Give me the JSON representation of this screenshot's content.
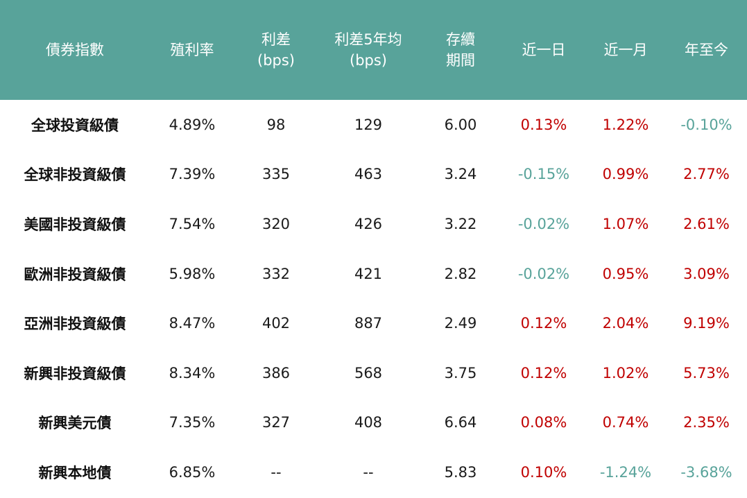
{
  "colors": {
    "header_bg": "#58a39a",
    "header_text": "#ffffff",
    "positive": "#c00000",
    "negative": "#58a39a"
  },
  "chart_data": {
    "type": "table",
    "columns": [
      {
        "key": "index",
        "lines": [
          "債券指數"
        ]
      },
      {
        "key": "yield",
        "lines": [
          "殖利率"
        ]
      },
      {
        "key": "spread",
        "lines": [
          "利差",
          "(bps)"
        ]
      },
      {
        "key": "spread5y",
        "lines": [
          "利差5年均",
          "(bps)"
        ]
      },
      {
        "key": "duration",
        "lines": [
          "存續",
          "期間"
        ]
      },
      {
        "key": "d1",
        "lines": [
          "近一日"
        ]
      },
      {
        "key": "m1",
        "lines": [
          "近一月"
        ]
      },
      {
        "key": "ytd",
        "lines": [
          "年至今"
        ]
      }
    ],
    "rows": [
      {
        "index": "全球投資級債",
        "yield": "4.89%",
        "spread": "98",
        "spread5y": "129",
        "duration": "6.00",
        "d1": "0.13%",
        "m1": "1.22%",
        "ytd": "-0.10%"
      },
      {
        "index": "全球非投資級債",
        "yield": "7.39%",
        "spread": "335",
        "spread5y": "463",
        "duration": "3.24",
        "d1": "-0.15%",
        "m1": "0.99%",
        "ytd": "2.77%"
      },
      {
        "index": "美國非投資級債",
        "yield": "7.54%",
        "spread": "320",
        "spread5y": "426",
        "duration": "3.22",
        "d1": "-0.02%",
        "m1": "1.07%",
        "ytd": "2.61%"
      },
      {
        "index": "歐洲非投資級債",
        "yield": "5.98%",
        "spread": "332",
        "spread5y": "421",
        "duration": "2.82",
        "d1": "-0.02%",
        "m1": "0.95%",
        "ytd": "3.09%"
      },
      {
        "index": "亞洲非投資級債",
        "yield": "8.47%",
        "spread": "402",
        "spread5y": "887",
        "duration": "2.49",
        "d1": "0.12%",
        "m1": "2.04%",
        "ytd": "9.19%"
      },
      {
        "index": "新興非投資級債",
        "yield": "8.34%",
        "spread": "386",
        "spread5y": "568",
        "duration": "3.75",
        "d1": "0.12%",
        "m1": "1.02%",
        "ytd": "5.73%"
      },
      {
        "index": "新興美元債",
        "yield": "7.35%",
        "spread": "327",
        "spread5y": "408",
        "duration": "6.64",
        "d1": "0.08%",
        "m1": "0.74%",
        "ytd": "2.35%"
      },
      {
        "index": "新興本地債",
        "yield": "6.85%",
        "spread": "--",
        "spread5y": "--",
        "duration": "5.83",
        "d1": "0.10%",
        "m1": "-1.24%",
        "ytd": "-3.68%"
      }
    ]
  }
}
